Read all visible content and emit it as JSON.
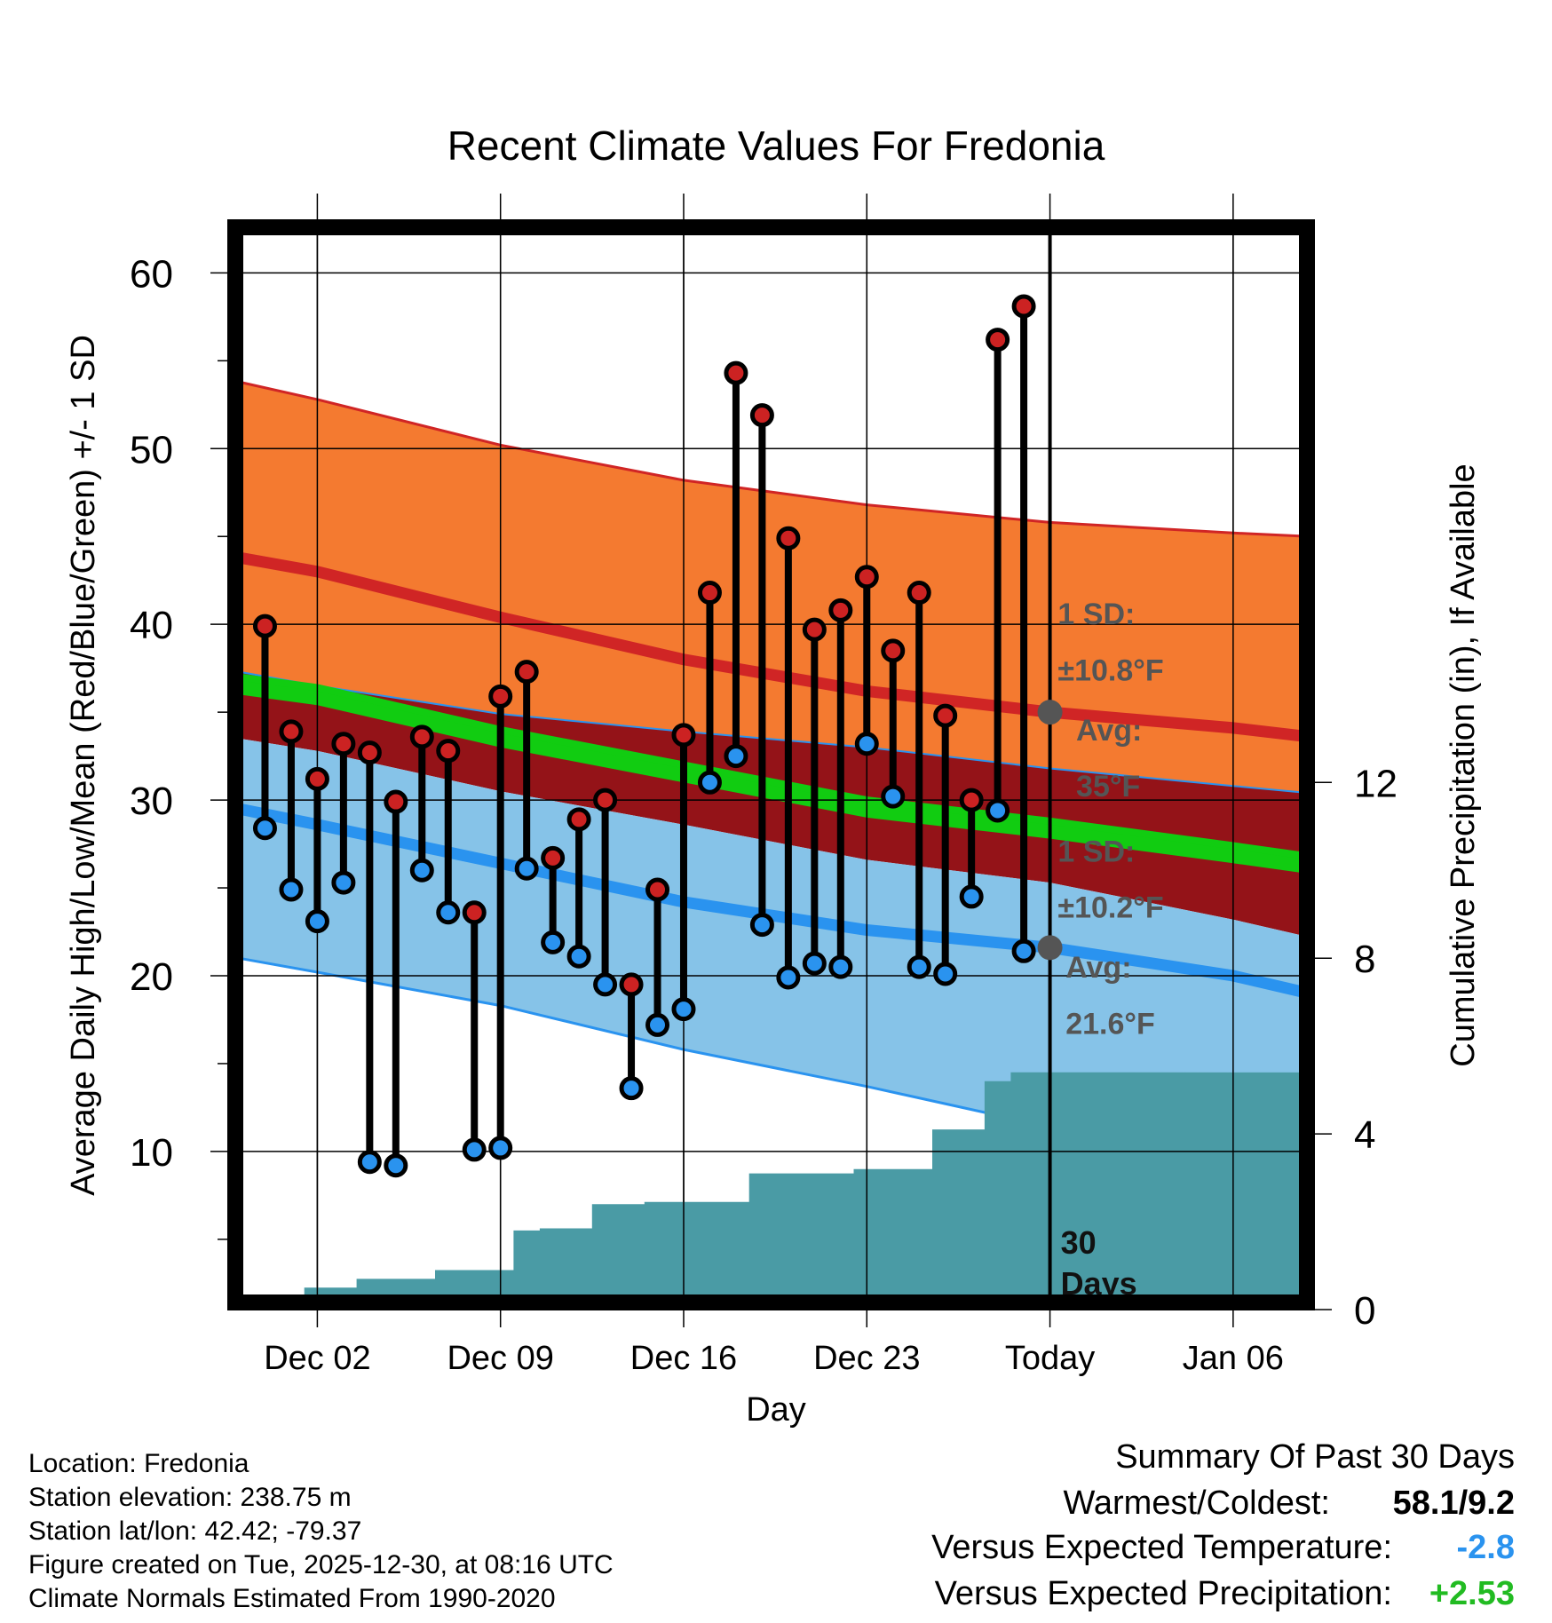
{
  "chart_data": {
    "type": "line",
    "title": "Recent Climate Values For Fredonia",
    "xlabel": "Day",
    "ylabel": "Average Daily High/Low/Mean (Red/Blue/Green) +/- 1 SD",
    "y2label": "Cumulative Precipitation (in), If Available",
    "x_range_days": [
      0,
      38
    ],
    "ylim": [
      1,
      63
    ],
    "y2lim": [
      0,
      24.8
    ],
    "x_ticks": [
      {
        "day": 3,
        "label": "Dec 02"
      },
      {
        "day": 10,
        "label": "Dec 09"
      },
      {
        "day": 17,
        "label": "Dec 16"
      },
      {
        "day": 24,
        "label": "Dec 23"
      },
      {
        "day": 31,
        "label": "Today"
      },
      {
        "day": 38,
        "label": "Jan 06"
      }
    ],
    "y_ticks": [
      10,
      20,
      30,
      40,
      50,
      60
    ],
    "y2_ticks": [
      0,
      4,
      8,
      12
    ],
    "today_day": 31,
    "days_label": "30\nDays",
    "normals_days": [
      0,
      3,
      10,
      17,
      24,
      31,
      38,
      41.5
    ],
    "normal_high": [
      43.8,
      43.0,
      40.4,
      38.0,
      36.2,
      35.0,
      34.1,
      33.6
    ],
    "normal_high_upper": [
      53.8,
      52.8,
      50.2,
      48.2,
      46.8,
      45.8,
      45.2,
      45.0
    ],
    "normal_low": [
      29.5,
      28.6,
      26.4,
      24.2,
      22.6,
      21.6,
      20.0,
      19.0
    ],
    "normal_low_lower": [
      21.0,
      20.2,
      18.3,
      15.8,
      13.7,
      11.4,
      9.5,
      8.5
    ],
    "normal_mean_upper": [
      37.0,
      36.4,
      34.0,
      32.0,
      30.0,
      28.8,
      27.4,
      26.8
    ],
    "normal_mean_lower": [
      36.0,
      35.4,
      33.0,
      31.0,
      29.0,
      27.8,
      26.4,
      25.8
    ],
    "normal_mean_sd_top": [
      37.3,
      36.5,
      34.9,
      33.9,
      33.0,
      31.8,
      30.8,
      30.4
    ],
    "normal_mean_sd_bottom": [
      33.5,
      32.8,
      30.5,
      28.6,
      26.6,
      25.3,
      23.2,
      22.2
    ],
    "series": [
      {
        "name": "Daily High",
        "color": "#cc2222",
        "values": [
          39.9,
          33.9,
          31.2,
          33.2,
          32.7,
          29.9,
          33.6,
          32.8,
          23.6,
          35.9,
          37.3,
          26.7,
          28.9,
          30.0,
          19.5,
          24.9,
          33.7,
          41.8,
          54.3,
          51.9,
          44.9,
          39.7,
          40.8,
          42.7,
          38.5,
          41.8,
          34.8,
          30.0,
          56.2,
          58.1
        ]
      },
      {
        "name": "Daily Low",
        "color": "#2a93ef",
        "values": [
          28.4,
          24.9,
          23.1,
          25.3,
          9.4,
          9.2,
          26.0,
          23.6,
          10.1,
          10.2,
          26.1,
          21.9,
          21.1,
          19.5,
          13.6,
          17.2,
          18.1,
          31.0,
          32.5,
          22.9,
          19.9,
          20.7,
          20.5,
          33.2,
          30.2,
          20.5,
          20.1,
          24.5,
          29.4,
          21.4
        ]
      }
    ],
    "observed_days": [
      1,
      2,
      3,
      4,
      5,
      6,
      7,
      8,
      9,
      10,
      11,
      12,
      13,
      14,
      15,
      16,
      17,
      18,
      19,
      20,
      21,
      22,
      23,
      24,
      25,
      26,
      27,
      28,
      29,
      30
    ],
    "precip_cumulative": [
      0.1,
      0.1,
      0.5,
      0.5,
      0.7,
      0.7,
      0.7,
      0.9,
      0.9,
      0.9,
      1.8,
      1.85,
      1.85,
      2.4,
      2.4,
      2.45,
      2.45,
      2.45,
      2.45,
      3.1,
      3.1,
      3.1,
      3.1,
      3.2,
      3.2,
      3.2,
      4.1,
      4.1,
      5.2,
      5.4
    ],
    "precip_final_total": 5.4,
    "annotations": [
      {
        "text": "1 SD:",
        "day": 31.3,
        "y": 40.0
      },
      {
        "text": "±10.8°F",
        "day": 31.3,
        "y": 36.8
      },
      {
        "text": "Avg:",
        "day": 32.0,
        "y": 33.4
      },
      {
        "text": "35°F",
        "day": 32.0,
        "y": 30.2
      },
      {
        "text": "1 SD:",
        "day": 31.3,
        "y": 26.5
      },
      {
        "text": "±10.2°F",
        "day": 31.3,
        "y": 23.3
      },
      {
        "text": "Avg:",
        "day": 31.6,
        "y": 19.9
      },
      {
        "text": "21.6°F",
        "day": 31.6,
        "y": 16.7
      }
    ],
    "avg_markers": [
      {
        "day": 31,
        "value": 35.0
      },
      {
        "day": 31,
        "value": 21.6
      }
    ],
    "colors": {
      "high_band": "#f47a30",
      "high_line": "#d02525",
      "mean_band": "#941318",
      "mean_line": "#11cc11",
      "low_band": "#86c3e8",
      "low_line": "#2a93ef",
      "precip": "#4a9ba5",
      "annotation": "#555555"
    }
  },
  "meta": {
    "location": "Location: Fredonia",
    "elevation": "Station elevation: 238.75 m",
    "latlon": "Station lat/lon: 42.42; -79.37",
    "created": "Figure created on Tue, 2025-12-30, at 08:16 UTC",
    "normals": "Climate Normals Estimated From 1990-2020"
  },
  "summary": {
    "heading": "Summary Of Past 30 Days",
    "warmest_label": "Warmest/Coldest:",
    "warmest_value": "58.1/9.2",
    "temp_label": "Versus Expected Temperature:",
    "temp_value": "-2.8",
    "temp_color": "#2a93ef",
    "precip_label": "Versus Expected Precipitation:",
    "precip_value": "+2.53",
    "precip_color": "#22bb22"
  }
}
